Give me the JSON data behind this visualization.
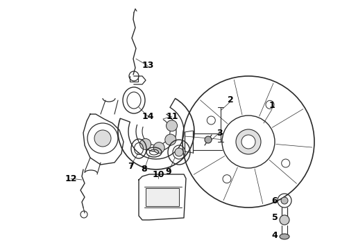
{
  "background_color": "#ffffff",
  "line_color": "#2a2a2a",
  "label_color": "#000000",
  "figsize": [
    4.9,
    3.6
  ],
  "dpi": 100,
  "xlim": [
    0,
    490
  ],
  "ylim": [
    0,
    360
  ]
}
